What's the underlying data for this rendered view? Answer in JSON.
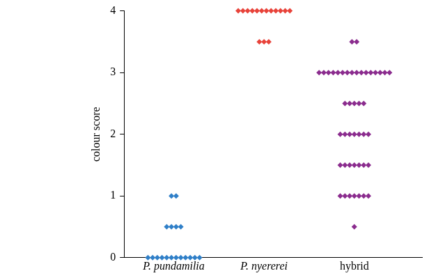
{
  "chart_data": {
    "type": "scatter",
    "y_label": "colour score",
    "categories": [
      "P. pundamilia",
      "P. nyererei",
      "hybrid"
    ],
    "values": [
      [
        1,
        1,
        0.5,
        0.5,
        0.5,
        0.5,
        0,
        0,
        0,
        0,
        0,
        0,
        0,
        0,
        0,
        0,
        0,
        0
      ],
      [
        4,
        4,
        4,
        4,
        4,
        4,
        4,
        4,
        4,
        4,
        4,
        4,
        3.5,
        3.5,
        3.5
      ],
      [
        3.5,
        3.5,
        3,
        3,
        3,
        3,
        3,
        3,
        3,
        3,
        3,
        3,
        3,
        3,
        3,
        3,
        3,
        3,
        2.5,
        2.5,
        2.5,
        2.5,
        2.5,
        2,
        2,
        2,
        2,
        2,
        2,
        2,
        1.5,
        1.5,
        1.5,
        1.5,
        1.5,
        1.5,
        1.5,
        1,
        1,
        1,
        1,
        1,
        1,
        1,
        0.5
      ]
    ],
    "colors": [
      "#2f7fc8",
      "#e8433a",
      "#8b2c8e"
    ],
    "ylim": [
      0,
      4
    ],
    "yticks": [
      0,
      1,
      2,
      3,
      4
    ],
    "grid": false
  }
}
